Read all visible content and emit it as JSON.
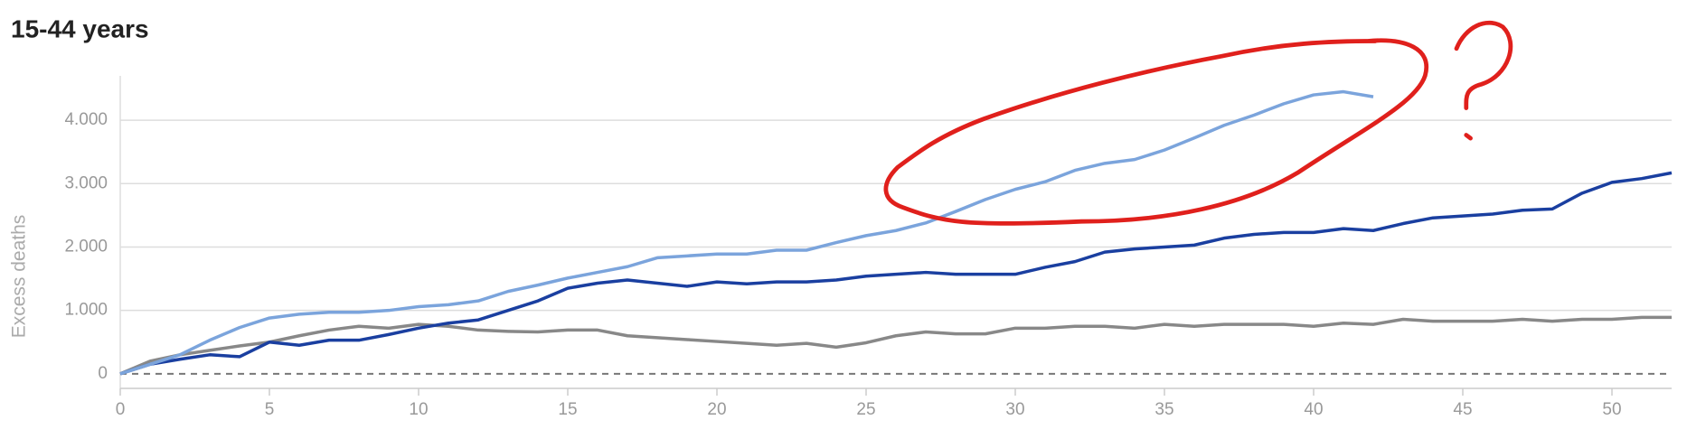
{
  "chart_data": {
    "type": "line",
    "title": "15-44 years",
    "y_label": "Excess deaths",
    "x": [
      0,
      1,
      2,
      3,
      4,
      5,
      6,
      7,
      8,
      9,
      10,
      11,
      12,
      13,
      14,
      15,
      16,
      17,
      18,
      19,
      20,
      21,
      22,
      23,
      24,
      25,
      26,
      27,
      28,
      29,
      30,
      31,
      32,
      33,
      34,
      35,
      36,
      37,
      38,
      39,
      40,
      41,
      42,
      43,
      44,
      45,
      46,
      47,
      48,
      49,
      50,
      51,
      52
    ],
    "xlim": [
      0,
      52
    ],
    "xticks": [
      0,
      5,
      10,
      15,
      20,
      25,
      30,
      35,
      40,
      45,
      50
    ],
    "ylim": [
      -230,
      4700
    ],
    "yticks": [
      0,
      {
        "value": 1000,
        "label": "1.000"
      },
      {
        "value": 2000,
        "label": "2.000"
      },
      {
        "value": 3000,
        "label": "3.000"
      },
      {
        "value": 4000,
        "label": "4.000"
      }
    ],
    "grid": true,
    "series": [
      {
        "color": "#888888",
        "values": [
          0,
          200,
          300,
          370,
          440,
          500,
          600,
          690,
          750,
          720,
          780,
          750,
          690,
          670,
          660,
          690,
          690,
          600,
          570,
          540,
          510,
          480,
          450,
          480,
          420,
          490,
          600,
          660,
          630,
          630,
          720,
          720,
          750,
          750,
          720,
          780,
          750,
          780,
          780,
          780,
          750,
          800,
          780,
          860,
          830,
          830,
          830,
          860,
          830,
          860,
          860,
          890,
          890
        ]
      },
      {
        "color": "#1a3fa0",
        "values": [
          0,
          150,
          230,
          300,
          270,
          500,
          450,
          530,
          530,
          620,
          720,
          800,
          850,
          1000,
          1150,
          1350,
          1430,
          1480,
          1430,
          1380,
          1450,
          1420,
          1450,
          1450,
          1480,
          1540,
          1570,
          1600,
          1570,
          1570,
          1570,
          1680,
          1770,
          1920,
          1970,
          2000,
          2030,
          2140,
          2200,
          2230,
          2230,
          2290,
          2260,
          2370,
          2460,
          2490,
          2520,
          2580,
          2600,
          2850,
          3020,
          3080,
          3170
        ]
      },
      {
        "color": "#7ba4dc",
        "values": [
          0,
          150,
          300,
          530,
          730,
          880,
          940,
          970,
          970,
          1000,
          1060,
          1090,
          1150,
          1300,
          1400,
          1510,
          1600,
          1690,
          1830,
          1860,
          1890,
          1890,
          1950,
          1950,
          2070,
          2180,
          2260,
          2380,
          2560,
          2750,
          2910,
          3030,
          3210,
          3320,
          3380,
          3530,
          3720,
          3920,
          4080,
          4260,
          4400,
          4450,
          4370,
          null,
          null,
          null,
          null,
          null,
          null,
          null,
          null,
          null,
          null
        ]
      }
    ]
  }
}
